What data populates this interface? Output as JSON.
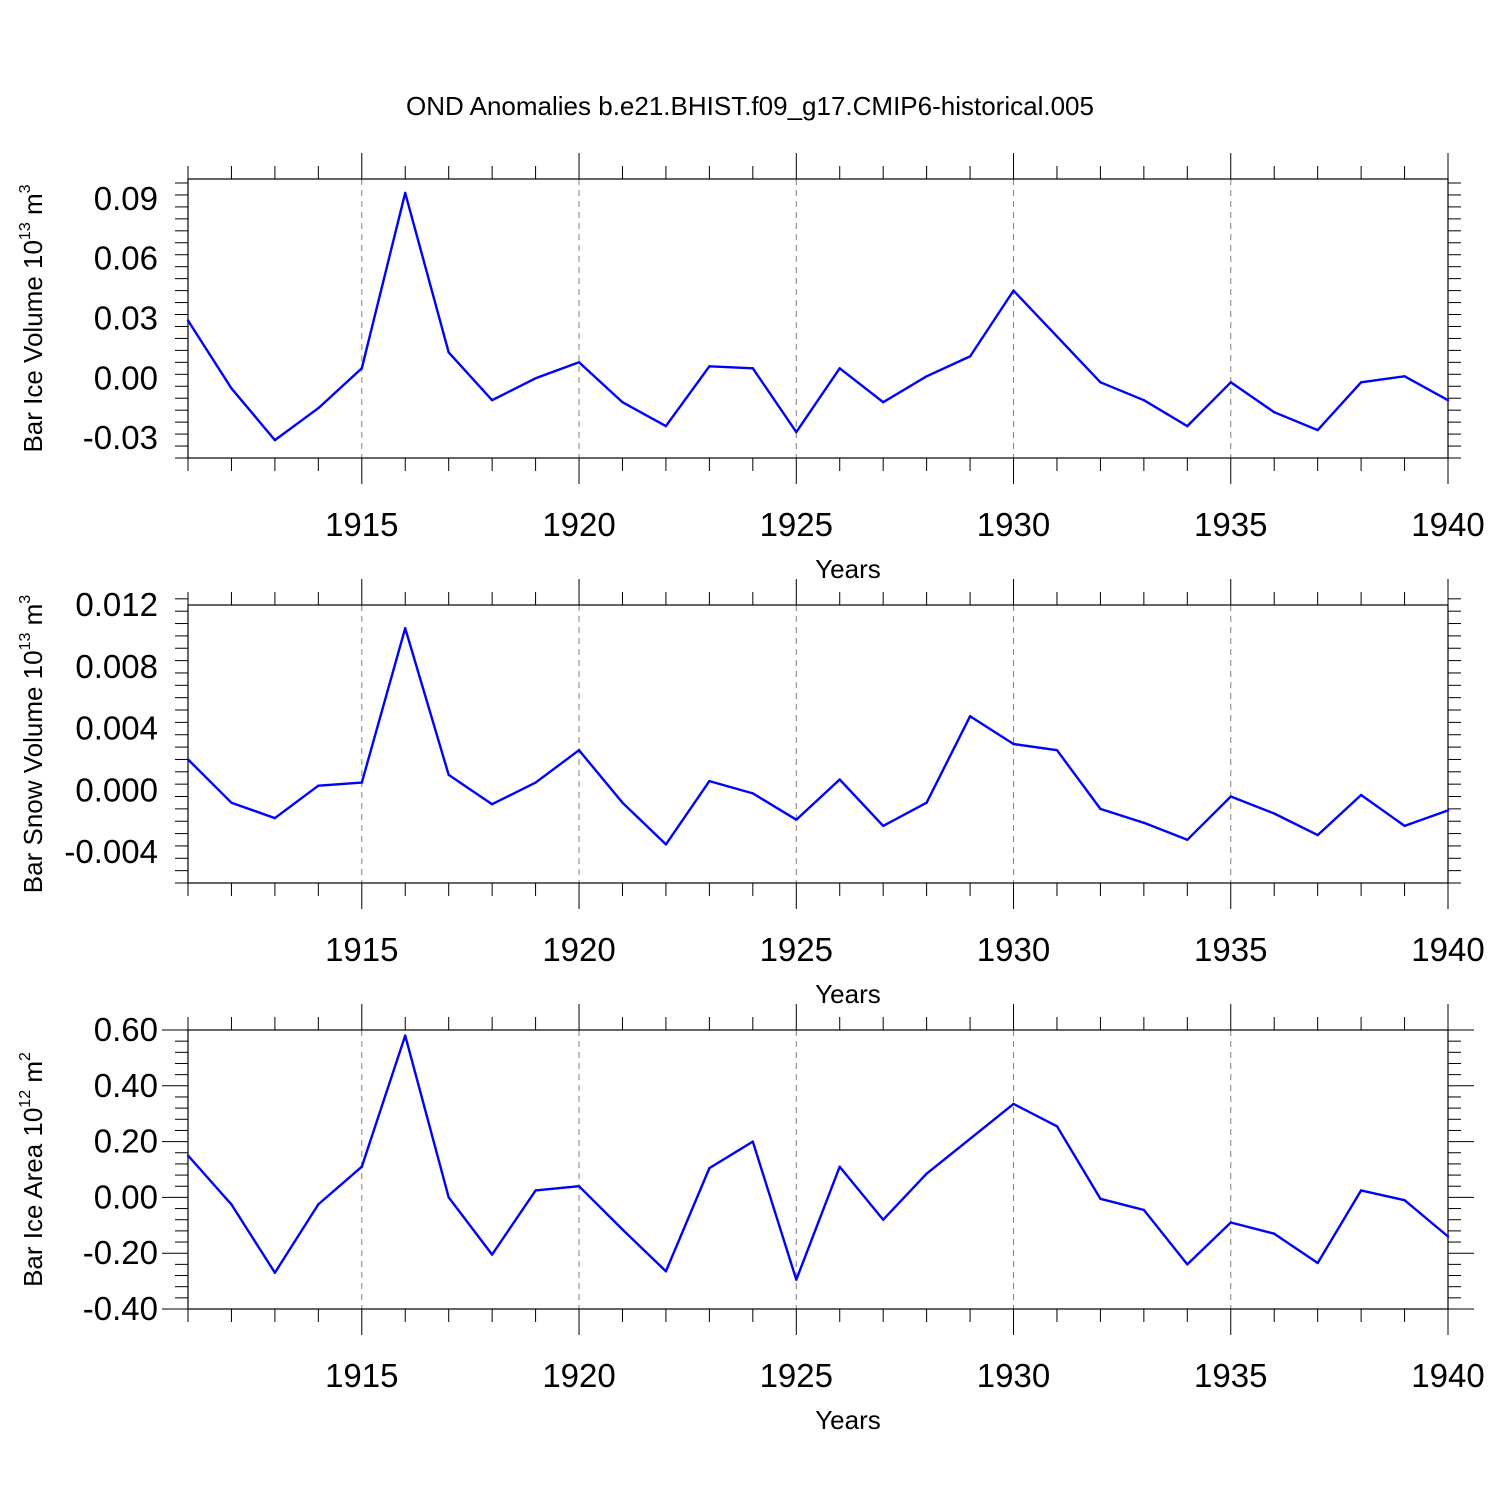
{
  "title": "OND Anomalies b.e21.BHIST.f09_g17.CMIP6-historical.005",
  "colors": {
    "line": "#0000ff",
    "axis": "#000000",
    "grid": "#808080"
  },
  "chart_data": [
    {
      "type": "line",
      "ylabel": {
        "text": "Bar Ice Volume 10",
        "sup": "13",
        "unit": " m",
        "unit_sup": "3"
      },
      "xlabel": "Years",
      "xlim": [
        1911,
        1940
      ],
      "ylim": [
        -0.04,
        0.1
      ],
      "yticks": [
        -0.03,
        0.0,
        0.03,
        0.06,
        0.09
      ],
      "ytick_labels": [
        "-0.03",
        "0.00",
        "0.03",
        "0.06",
        "0.09"
      ],
      "xticks": [
        1915,
        1920,
        1925,
        1930,
        1935,
        1940
      ],
      "xtick_labels": [
        "1915",
        "1920",
        "1925",
        "1930",
        "1935",
        "1940"
      ],
      "grid": "vertical dashed at major x ticks",
      "x": [
        1911,
        1912,
        1913,
        1914,
        1915,
        1916,
        1917,
        1918,
        1919,
        1920,
        1921,
        1922,
        1923,
        1924,
        1925,
        1926,
        1927,
        1928,
        1929,
        1930,
        1931,
        1932,
        1933,
        1934,
        1935,
        1936,
        1937,
        1938,
        1939,
        1940
      ],
      "values": [
        0.029,
        -0.005,
        -0.031,
        -0.015,
        0.005,
        0.093,
        0.013,
        -0.011,
        0.0,
        0.008,
        -0.012,
        -0.024,
        0.006,
        0.005,
        -0.027,
        0.005,
        -0.012,
        0.001,
        0.011,
        0.044,
        0.021,
        -0.002,
        -0.011,
        -0.024,
        -0.002,
        -0.017,
        -0.026,
        -0.002,
        0.001,
        -0.011
      ]
    },
    {
      "type": "line",
      "ylabel": {
        "text": "Bar Snow Volume 10",
        "sup": "13",
        "unit": " m",
        "unit_sup": "3"
      },
      "xlabel": "Years",
      "xlim": [
        1911,
        1940
      ],
      "ylim": [
        -0.006,
        0.012
      ],
      "yticks": [
        -0.004,
        0.0,
        0.004,
        0.008,
        0.012
      ],
      "ytick_labels": [
        "-0.004",
        "0.000",
        "0.004",
        "0.008",
        "0.012"
      ],
      "xticks": [
        1915,
        1920,
        1925,
        1930,
        1935,
        1940
      ],
      "xtick_labels": [
        "1915",
        "1920",
        "1925",
        "1930",
        "1935",
        "1940"
      ],
      "grid": "vertical dashed at major x ticks",
      "x": [
        1911,
        1912,
        1913,
        1914,
        1915,
        1916,
        1917,
        1918,
        1919,
        1920,
        1921,
        1922,
        1923,
        1924,
        1925,
        1926,
        1927,
        1928,
        1929,
        1930,
        1931,
        1932,
        1933,
        1934,
        1935,
        1936,
        1937,
        1938,
        1939,
        1940
      ],
      "values": [
        0.002,
        -0.0008,
        -0.0018,
        0.0003,
        0.0005,
        0.0105,
        0.001,
        -0.0009,
        0.0005,
        0.0026,
        -0.0008,
        -0.0035,
        0.0006,
        -0.0002,
        -0.0019,
        0.0007,
        -0.0023,
        -0.0008,
        0.0048,
        0.003,
        0.0026,
        -0.0012,
        -0.0021,
        -0.0032,
        -0.0004,
        -0.0015,
        -0.0029,
        -0.0003,
        -0.0023,
        -0.0013
      ]
    },
    {
      "type": "line",
      "ylabel": {
        "text": "Bar Ice Area 10",
        "sup": "12",
        "unit": " m",
        "unit_sup": "2"
      },
      "xlabel": "Years",
      "xlim": [
        1911,
        1940
      ],
      "ylim": [
        -0.4,
        0.6
      ],
      "yticks": [
        -0.4,
        -0.2,
        0.0,
        0.2,
        0.4,
        0.6
      ],
      "ytick_labels": [
        "-0.40",
        "-0.20",
        "0.00",
        "0.20",
        "0.40",
        "0.60"
      ],
      "xticks": [
        1915,
        1920,
        1925,
        1930,
        1935,
        1940
      ],
      "xtick_labels": [
        "1915",
        "1920",
        "1925",
        "1930",
        "1935",
        "1940"
      ],
      "grid": "vertical dashed at major x ticks",
      "x": [
        1911,
        1912,
        1913,
        1914,
        1915,
        1916,
        1917,
        1918,
        1919,
        1920,
        1921,
        1922,
        1923,
        1924,
        1925,
        1926,
        1927,
        1928,
        1929,
        1930,
        1931,
        1932,
        1933,
        1934,
        1935,
        1936,
        1937,
        1938,
        1939,
        1940
      ],
      "values": [
        0.15,
        -0.025,
        -0.27,
        -0.025,
        0.11,
        0.58,
        0.0,
        -0.205,
        0.025,
        0.04,
        -0.115,
        -0.265,
        0.105,
        0.2,
        -0.295,
        0.11,
        -0.08,
        0.085,
        0.21,
        0.335,
        0.255,
        -0.005,
        -0.045,
        -0.24,
        -0.09,
        -0.13,
        -0.235,
        0.025,
        -0.01,
        -0.14
      ]
    }
  ]
}
